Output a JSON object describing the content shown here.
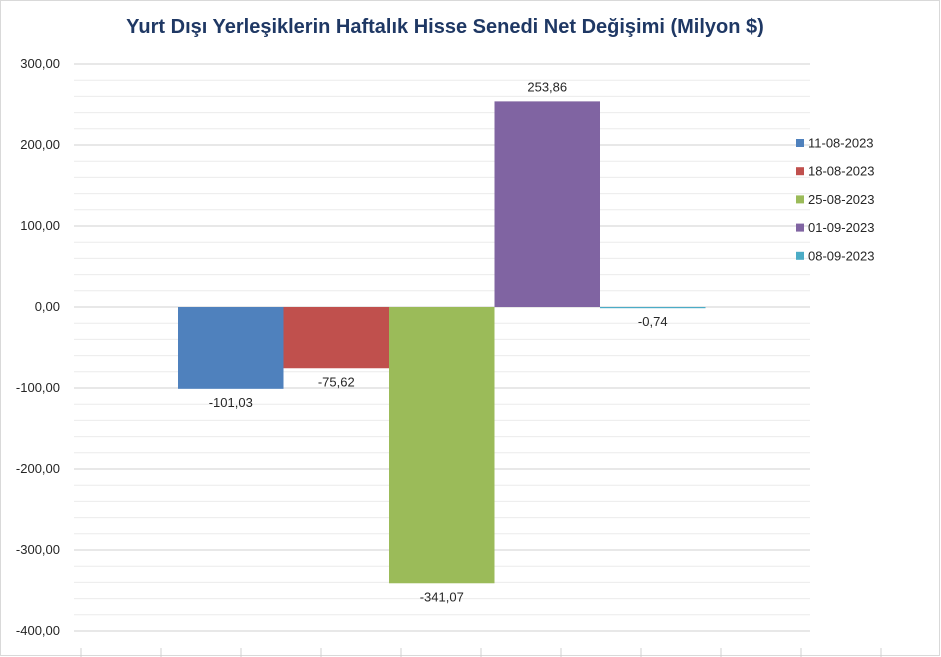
{
  "chart_data": {
    "type": "bar",
    "title": "Yurt Dışı Yerleşiklerin Haftalık Hisse Senedi Net Değişimi (Milyon $)",
    "xlabel": "",
    "ylabel": "",
    "ylim": [
      -400,
      300
    ],
    "yticks": [
      "300,00",
      "200,00",
      "100,00",
      "0,00",
      "-100,00",
      "-200,00",
      "-300,00",
      "-400,00"
    ],
    "ytick_values": [
      300,
      200,
      100,
      0,
      -100,
      -200,
      -300,
      -400
    ],
    "grid": true,
    "legend_position": "right",
    "series": [
      {
        "name": "11-08-2023",
        "value": -101.03,
        "label": "-101,03",
        "color": "#4f81bd"
      },
      {
        "name": "18-08-2023",
        "value": -75.62,
        "label": "-75,62",
        "color": "#c0504d"
      },
      {
        "name": "25-08-2023",
        "value": -341.07,
        "label": "-341,07",
        "color": "#9bbb59"
      },
      {
        "name": "01-09-2023",
        "value": 253.86,
        "label": "253,86",
        "color": "#8064a2"
      },
      {
        "name": "08-09-2023",
        "value": -0.74,
        "label": "-0,74",
        "color": "#4bacc6"
      }
    ]
  }
}
